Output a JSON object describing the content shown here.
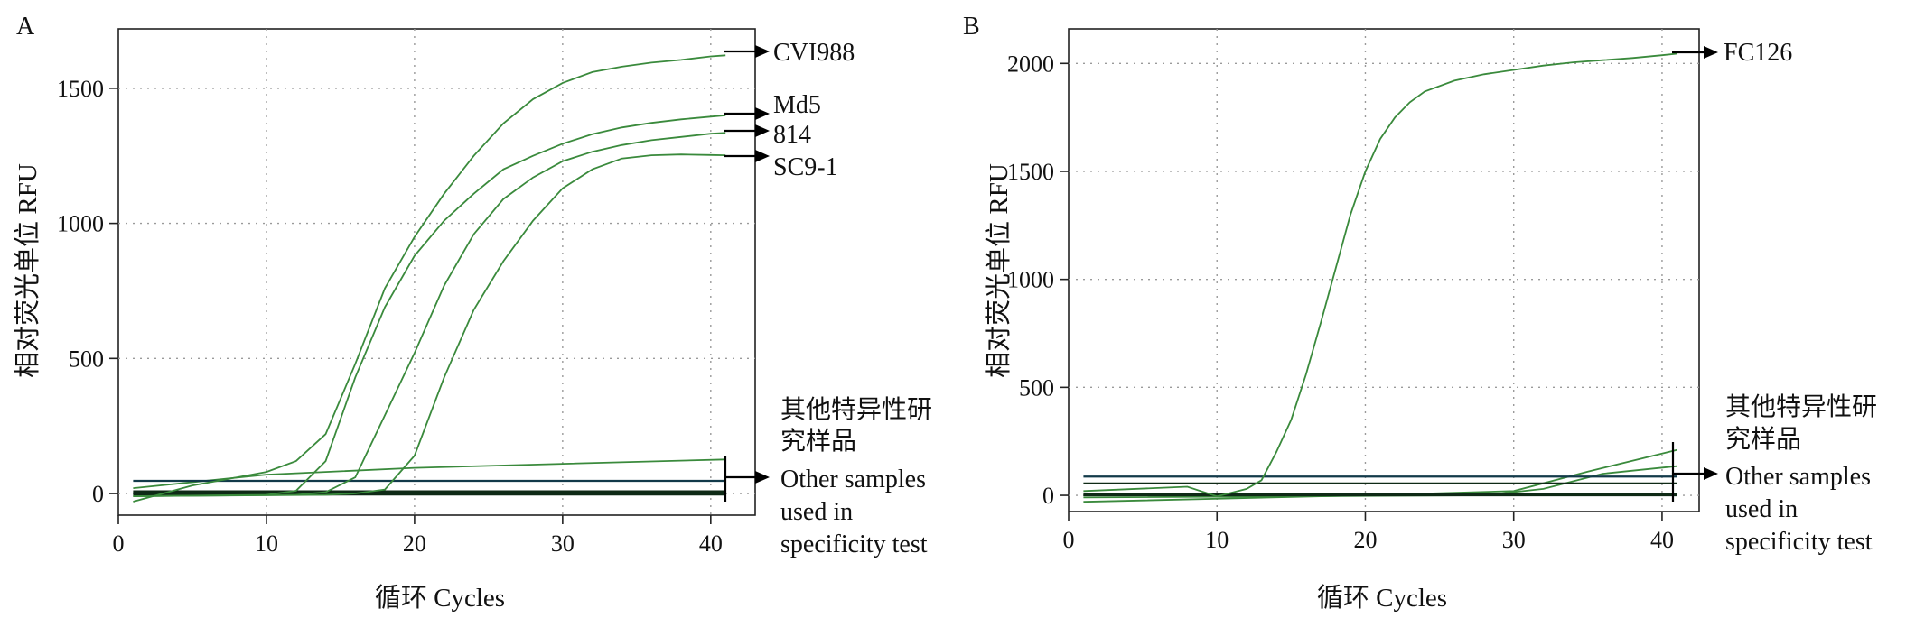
{
  "colors": {
    "curve": "#3a8a3c",
    "baseline_dark": "#0f2a16",
    "threshold": "#123a4a",
    "grid": "#9a9a9a"
  },
  "chart_data": [
    {
      "panel": "A",
      "type": "line",
      "xlabel": "循环 Cycles",
      "ylabel": "相对荧光单位 RFU",
      "xlim": [
        0,
        43
      ],
      "ylim": [
        -80,
        1720
      ],
      "xticks": [
        0,
        10,
        20,
        30,
        40
      ],
      "yticks": [
        0,
        500,
        1000,
        1500
      ],
      "grid": true,
      "threshold": 47,
      "series": [
        {
          "name": "CVI988",
          "x": [
            1,
            5,
            8,
            10,
            12,
            14,
            16,
            18,
            20,
            22,
            24,
            26,
            28,
            30,
            32,
            34,
            36,
            38,
            40,
            41
          ],
          "y": [
            -30,
            30,
            60,
            80,
            120,
            220,
            480,
            760,
            950,
            1110,
            1250,
            1370,
            1460,
            1520,
            1560,
            1580,
            1595,
            1605,
            1618,
            1622
          ]
        },
        {
          "name": "Md5",
          "x": [
            1,
            10,
            12,
            14,
            16,
            18,
            20,
            22,
            24,
            26,
            28,
            30,
            32,
            34,
            36,
            38,
            40,
            41
          ],
          "y": [
            -10,
            -5,
            10,
            120,
            430,
            690,
            880,
            1010,
            1110,
            1200,
            1250,
            1295,
            1330,
            1355,
            1372,
            1385,
            1395,
            1400
          ]
        },
        {
          "name": "814",
          "x": [
            1,
            12,
            14,
            16,
            18,
            20,
            22,
            24,
            26,
            28,
            30,
            32,
            34,
            36,
            38,
            40,
            41
          ],
          "y": [
            -10,
            -5,
            5,
            60,
            290,
            520,
            770,
            960,
            1090,
            1170,
            1230,
            1265,
            1290,
            1308,
            1320,
            1332,
            1335
          ]
        },
        {
          "name": "SC9-1",
          "x": [
            1,
            14,
            16,
            18,
            20,
            22,
            24,
            26,
            28,
            30,
            32,
            34,
            36,
            38,
            40,
            41
          ],
          "y": [
            -10,
            -5,
            0,
            15,
            140,
            430,
            680,
            860,
            1010,
            1130,
            1200,
            1240,
            1252,
            1255,
            1253,
            1252
          ]
        }
      ],
      "flat_series": [
        {
          "x": [
            1,
            10,
            20,
            30,
            41
          ],
          "y": [
            20,
            70,
            95,
            110,
            126
          ]
        },
        {
          "x": [
            1,
            41
          ],
          "y": [
            8,
            8
          ]
        },
        {
          "x": [
            1,
            41
          ],
          "y": [
            2,
            2
          ]
        },
        {
          "x": [
            1,
            41
          ],
          "y": [
            -4,
            -4
          ]
        }
      ],
      "annotations": [
        {
          "text": "CVI988",
          "y": 1622
        },
        {
          "text": "Md5",
          "y": 1400
        },
        {
          "text": "814",
          "y": 1335
        },
        {
          "text": "SC9-1",
          "y": 1252
        }
      ],
      "bracket": {
        "y_top": 130,
        "y_bottom": -40,
        "arrow_y": 47
      },
      "group_label_cn": [
        "其他特异性研",
        "究样品"
      ],
      "group_label_en": [
        "Other samples",
        "used in",
        "specificity test"
      ]
    },
    {
      "panel": "B",
      "type": "line",
      "xlabel": "循环 Cycles",
      "ylabel": "相对荧光单位 RFU",
      "xlim": [
        0,
        42.5
      ],
      "ylim": [
        -75,
        2160
      ],
      "xticks": [
        0,
        10,
        20,
        30,
        40
      ],
      "yticks": [
        0,
        500,
        1000,
        1500,
        2000
      ],
      "grid": true,
      "threshold": 87,
      "series": [
        {
          "name": "FC126",
          "x": [
            1,
            8,
            10,
            12,
            13,
            14,
            15,
            16,
            17,
            18,
            19,
            20,
            21,
            22,
            23,
            24,
            26,
            28,
            30,
            32,
            34,
            36,
            38,
            40,
            41
          ],
          "y": [
            20,
            40,
            -5,
            30,
            70,
            200,
            350,
            560,
            800,
            1050,
            1300,
            1500,
            1650,
            1750,
            1820,
            1870,
            1920,
            1950,
            1970,
            1990,
            2005,
            2015,
            2025,
            2038,
            2045
          ]
        }
      ],
      "flat_series": [
        {
          "x": [
            1,
            20,
            30,
            35,
            41
          ],
          "y": [
            -30,
            0,
            20,
            110,
            210
          ]
        },
        {
          "x": [
            1,
            28,
            32,
            36,
            41
          ],
          "y": [
            -10,
            0,
            30,
            100,
            135
          ]
        },
        {
          "x": [
            1,
            41
          ],
          "y": [
            55,
            55
          ]
        },
        {
          "x": [
            1,
            41
          ],
          "y": [
            8,
            8
          ]
        },
        {
          "x": [
            1,
            41
          ],
          "y": [
            0,
            0
          ]
        }
      ],
      "annotations": [
        {
          "text": "FC126",
          "y": 2045
        }
      ],
      "bracket": {
        "y_top": 230,
        "y_bottom": -25,
        "arrow_y": 87
      },
      "group_label_cn": [
        "其他特异性研",
        "究样品"
      ],
      "group_label_en": [
        "Other samples",
        "used in",
        "specificity test"
      ]
    }
  ]
}
